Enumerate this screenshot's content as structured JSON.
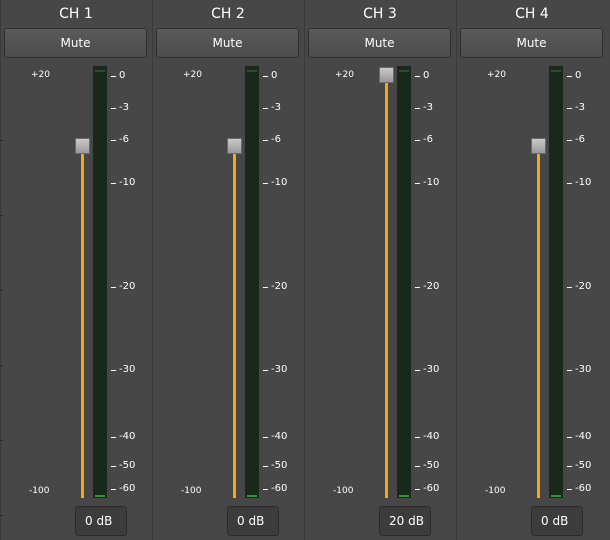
{
  "scale": {
    "max_label": "+20",
    "min_label": "-100",
    "meter_ticks": [
      "0",
      "-3",
      "-6",
      "-10",
      "-20",
      "-30",
      "-40",
      "-50",
      "-60"
    ]
  },
  "channels": [
    {
      "title": "CH 1",
      "mute_label": "Mute",
      "gain_label": "0 dB",
      "gain_db": 0
    },
    {
      "title": "CH 2",
      "mute_label": "Mute",
      "gain_label": "0 dB",
      "gain_db": 0
    },
    {
      "title": "CH 3",
      "mute_label": "Mute",
      "gain_label": "20 dB",
      "gain_db": 20
    },
    {
      "title": "CH 4",
      "mute_label": "Mute",
      "gain_label": "0 dB",
      "gain_db": 0
    }
  ],
  "colors": {
    "background": "#474747",
    "slider_fill": "#f2a81d",
    "meter_background": "#18281a",
    "meter_level": "#2c9a2c"
  }
}
